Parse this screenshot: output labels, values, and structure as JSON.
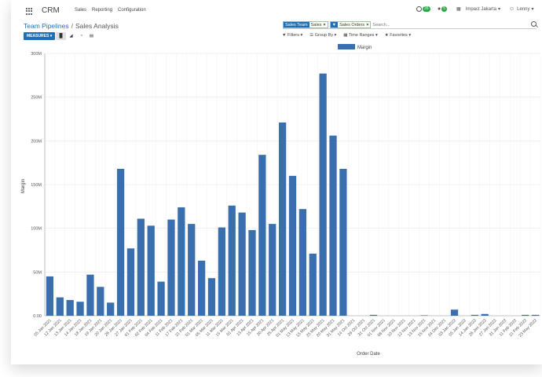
{
  "navbar": {
    "app_name": "CRM",
    "menu": [
      "Sales",
      "Reporting",
      "Configuration"
    ],
    "activity_count": "26",
    "messages_count": "5",
    "company": "Impact Jakarta",
    "user": "Lenny"
  },
  "breadcrumb": {
    "parent": "Team Pipelines",
    "separator": "/",
    "current": "Sales Analysis"
  },
  "search": {
    "facets": [
      {
        "type": "Sales Team",
        "value": "Sales"
      },
      {
        "type": "filter",
        "value": "Sales Orders"
      }
    ],
    "placeholder": "Search..."
  },
  "toolbar": {
    "measures_label": "MEASURES"
  },
  "filter_menus": [
    "Filters",
    "Group By",
    "Time Ranges",
    "Favorites"
  ],
  "colors": {
    "bar": "#3a6faf",
    "accent": "#1f6fb5",
    "grid": "#e6e6e6"
  },
  "chart_data": {
    "type": "bar",
    "xlabel": "Order Date",
    "ylabel": "Margin",
    "legend": [
      "Margin"
    ],
    "legend_position": "top",
    "grid": true,
    "ylim": [
      0,
      300
    ],
    "ytick_labels": [
      "0.00",
      "50M",
      "100M",
      "150M",
      "200M",
      "250M",
      "300M"
    ],
    "categories": [
      "05 Jan 2021",
      "12 Jan 2021",
      "13 Jan 2021",
      "14 Jan 2021",
      "18 Jan 2021",
      "19 Jan 2021",
      "20 Jan 2021",
      "26 Jan 2021",
      "27 Jan 2021",
      "01 Feb 2021",
      "02 Feb 2021",
      "04 Feb 2021",
      "11 Feb 2021",
      "17 Feb 2021",
      "21 Feb 2021",
      "01 Mar 2021",
      "05 Mar 2021",
      "11 Mar 2021",
      "15 Mar 2021",
      "01 Apr 2021",
      "13 Apr 2021",
      "15 Apr 2021",
      "20 Apr 2021",
      "25 Apr 2021",
      "01 May 2021",
      "13 May 2021",
      "15 May 2021",
      "25 May 2021",
      "20 May 2021",
      "31 May 2021",
      "14 Oct 2021",
      "29 Oct 2021",
      "31 Oct 2021",
      "01 Nov 2021",
      "08 Nov 2021",
      "10 Nov 2021",
      "12 Nov 2021",
      "13 Nov 2021",
      "15 Nov 2021",
      "24 Dec 2021",
      "03 Jan 2022",
      "05 Jan 2022",
      "14 Jan 2022",
      "26 Jan 2022",
      "27 Jan 2022",
      "31 Jan 2022",
      "11 Feb 2022",
      "21 Feb 2022",
      "23 May 2022"
    ],
    "values": [
      45,
      21,
      18,
      16,
      47,
      33,
      15,
      168,
      77,
      111,
      103,
      39,
      110,
      124,
      105,
      63,
      43,
      101,
      126,
      118,
      98,
      184,
      105,
      221,
      160,
      122,
      71,
      277,
      206,
      168,
      0,
      0,
      1,
      0,
      0,
      0,
      0,
      0.5,
      0,
      0,
      7,
      0,
      1,
      2,
      0,
      0,
      0,
      1,
      1
    ]
  }
}
